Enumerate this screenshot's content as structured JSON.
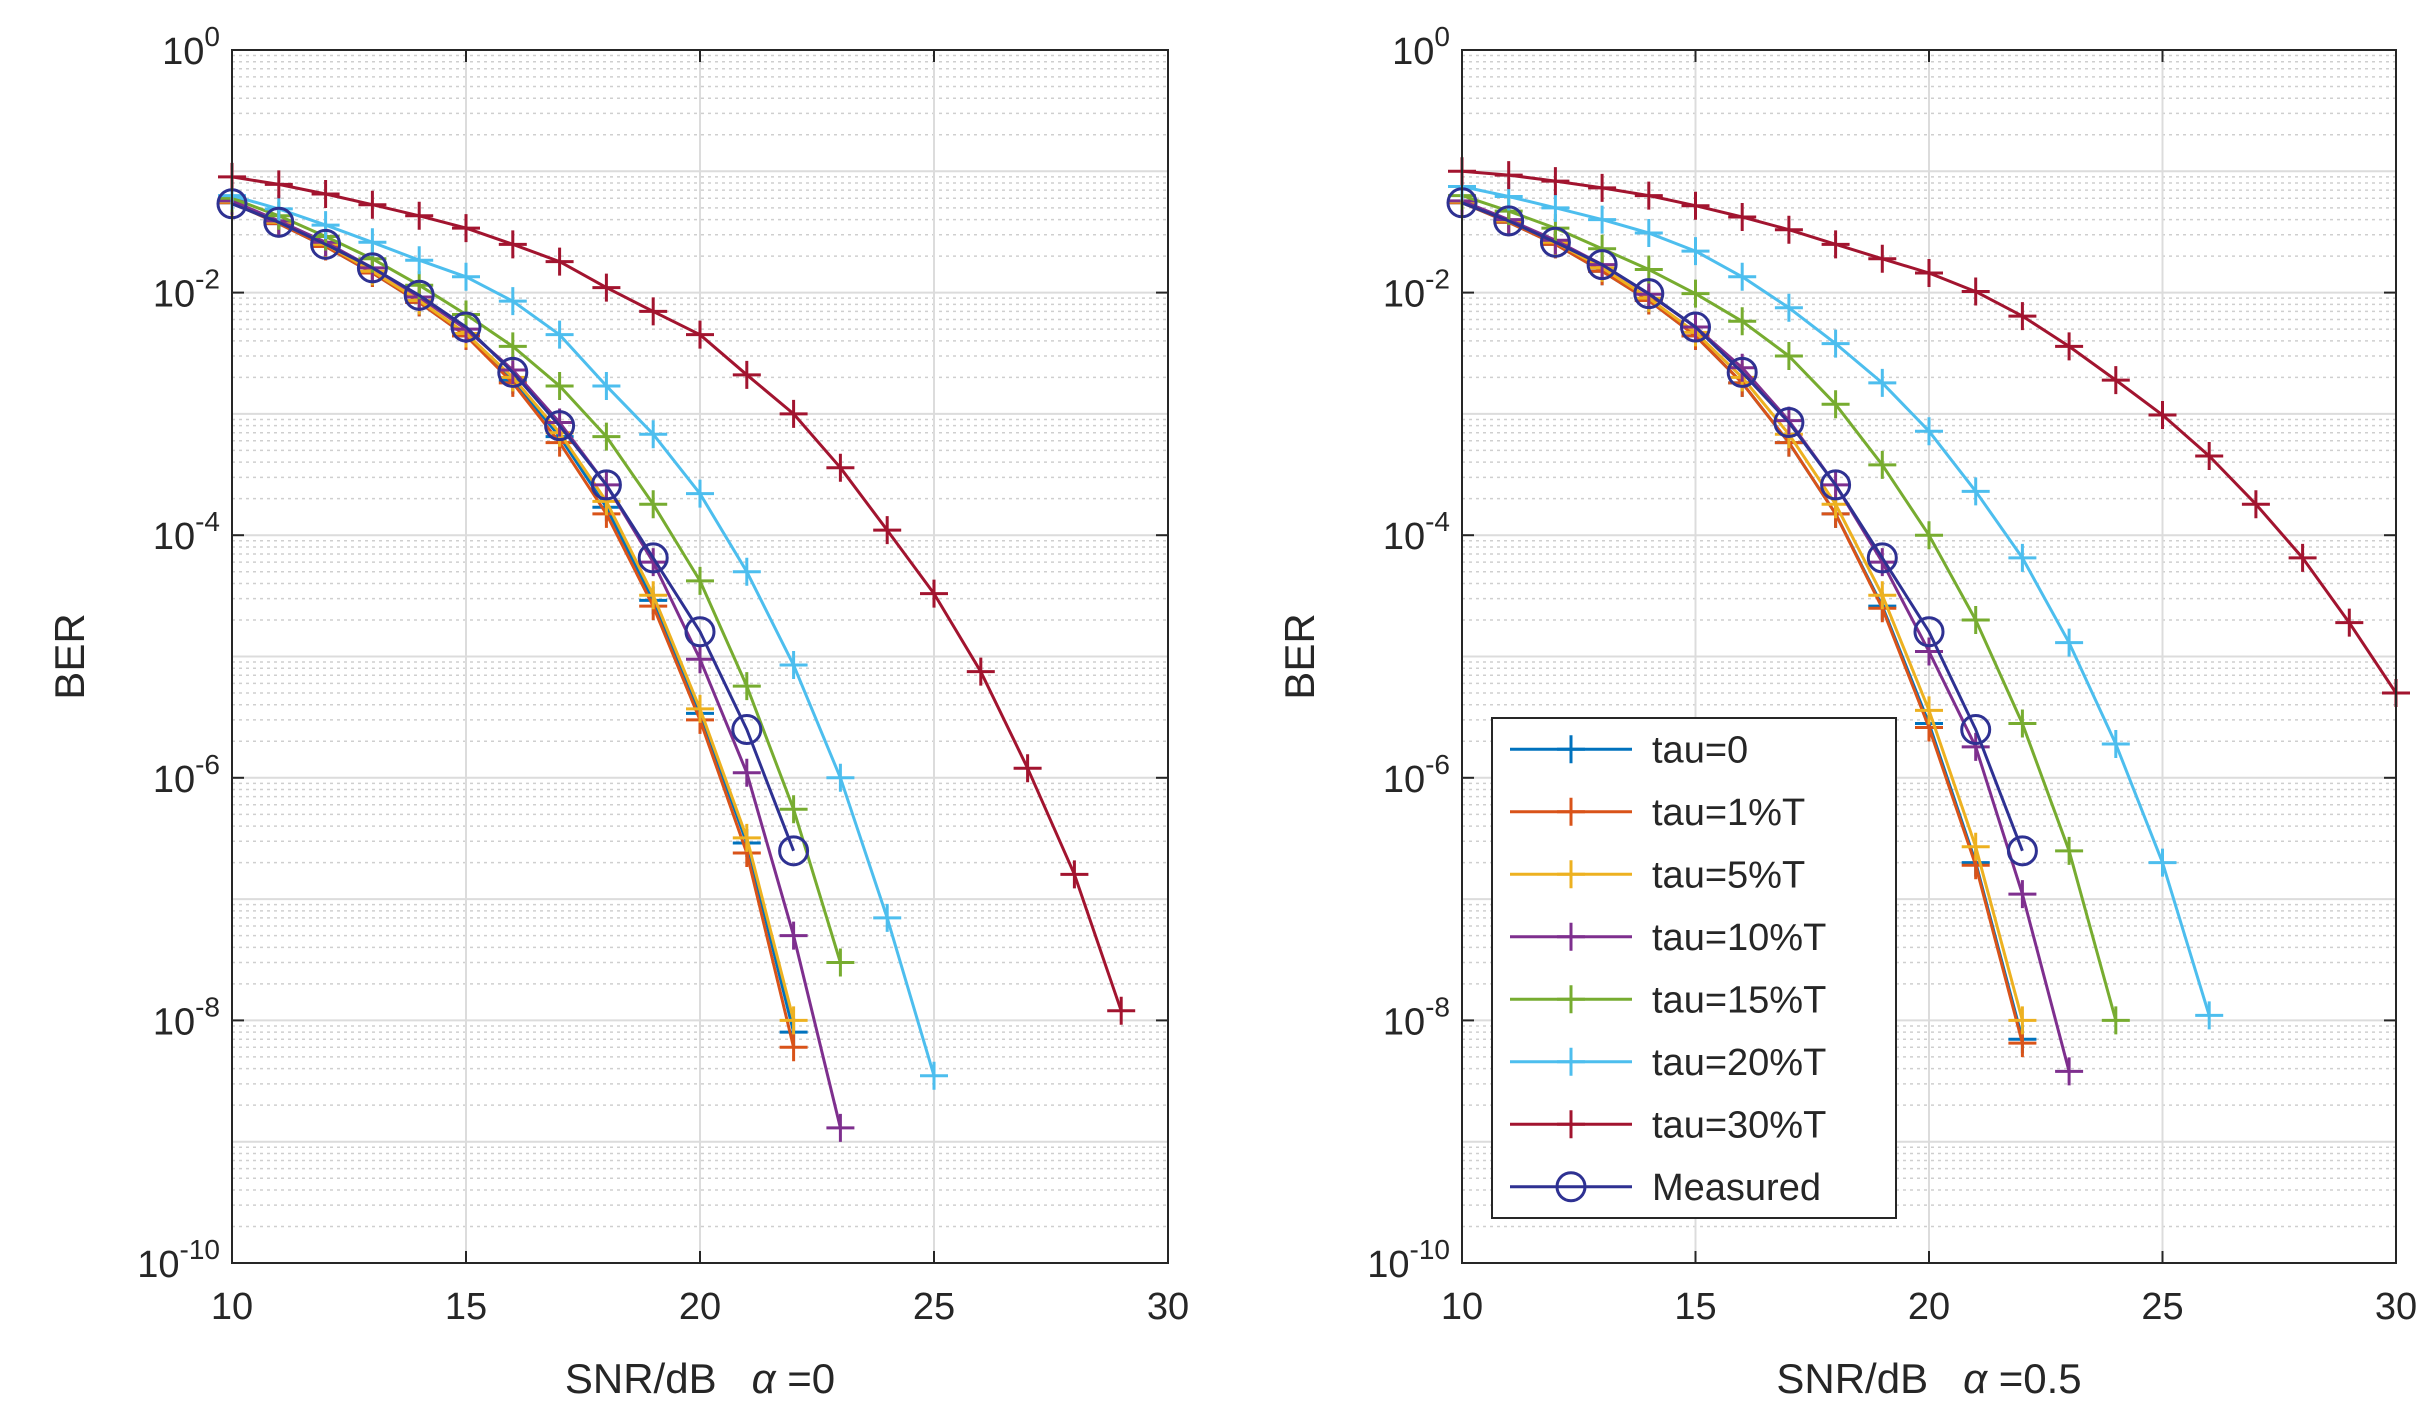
{
  "chart_data": [
    {
      "type": "line",
      "xlabel": "SNR/dB",
      "xlabel_param": "α =0",
      "ylabel": "BER",
      "xlim": [
        10,
        30
      ],
      "ylim_exp": [
        -10,
        0
      ],
      "yscale": "log",
      "grid": true,
      "minor_grid": true,
      "xticks": [
        "10",
        "15",
        "20",
        "25",
        "30"
      ],
      "yticks": [
        {
          "base": "10",
          "exp": "0"
        },
        {
          "base": "10",
          "exp": "-2"
        },
        {
          "base": "10",
          "exp": "-4"
        },
        {
          "base": "10",
          "exp": "-6"
        },
        {
          "base": "10",
          "exp": "-8"
        },
        {
          "base": "10",
          "exp": "-10"
        }
      ],
      "series": [
        {
          "name": "tau=0",
          "color": "#0072BD",
          "marker": "plus",
          "x": [
            10,
            11,
            12,
            13,
            14,
            15,
            16,
            17,
            18,
            19,
            20,
            21,
            22
          ],
          "y": [
            0.055,
            0.037,
            0.024,
            0.0145,
            0.0083,
            0.0044,
            0.0019,
            0.00065,
            0.00017,
            2.9e-05,
            3.4e-06,
            2.9e-07,
            8e-09
          ]
        },
        {
          "name": "tau=1%T",
          "color": "#D95319",
          "marker": "plus",
          "x": [
            10,
            11,
            12,
            13,
            14,
            15,
            16,
            17,
            18,
            19,
            20,
            21,
            22
          ],
          "y": [
            0.055,
            0.037,
            0.024,
            0.0145,
            0.0083,
            0.0044,
            0.0018,
            0.00058,
            0.00015,
            2.6e-05,
            3e-06,
            2.4e-07,
            6e-09
          ]
        },
        {
          "name": "tau=5%T",
          "color": "#EDB120",
          "marker": "plus",
          "x": [
            10,
            11,
            12,
            13,
            14,
            15,
            16,
            17,
            18,
            19,
            20,
            21,
            22
          ],
          "y": [
            0.056,
            0.038,
            0.025,
            0.015,
            0.0086,
            0.0046,
            0.002,
            0.0007,
            0.00019,
            3.2e-05,
            3.7e-06,
            3.2e-07,
            1e-08
          ]
        },
        {
          "name": "tau=10%T",
          "color": "#7E2F8E",
          "marker": "plus",
          "x": [
            10,
            11,
            12,
            13,
            14,
            15,
            16,
            17,
            18,
            19,
            20,
            21,
            22,
            23
          ],
          "y": [
            0.057,
            0.039,
            0.026,
            0.016,
            0.0092,
            0.005,
            0.0023,
            0.00085,
            0.00026,
            6e-05,
            9.5e-06,
            1.1e-06,
            5e-08,
            1.3e-09
          ]
        },
        {
          "name": "tau=15%T",
          "color": "#77AC30",
          "marker": "plus",
          "x": [
            10,
            11,
            12,
            13,
            14,
            15,
            16,
            17,
            18,
            19,
            20,
            21,
            22,
            23
          ],
          "y": [
            0.06,
            0.043,
            0.029,
            0.019,
            0.0115,
            0.0066,
            0.0036,
            0.0017,
            0.00065,
            0.00018,
            4.2e-05,
            5.7e-06,
            5.5e-07,
            3e-08
          ]
        },
        {
          "name": "tau=20%T",
          "color": "#4DBEEE",
          "marker": "plus",
          "x": [
            10,
            11,
            12,
            13,
            14,
            15,
            16,
            17,
            18,
            19,
            20,
            21,
            22,
            23,
            24,
            25
          ],
          "y": [
            0.063,
            0.049,
            0.036,
            0.026,
            0.0185,
            0.0135,
            0.0085,
            0.0045,
            0.0017,
            0.00068,
            0.00022,
            5e-05,
            8.5e-06,
            1e-06,
            7e-08,
            3.5e-09
          ]
        },
        {
          "name": "tau=30%T",
          "color": "#A2142F",
          "marker": "plus",
          "x": [
            10,
            11,
            12,
            13,
            14,
            15,
            16,
            17,
            18,
            19,
            20,
            21,
            22,
            23,
            24,
            25,
            26,
            27,
            28,
            29
          ],
          "y": [
            0.09,
            0.078,
            0.065,
            0.053,
            0.043,
            0.034,
            0.025,
            0.018,
            0.011,
            0.007,
            0.0045,
            0.0021,
            0.001,
            0.00036,
            0.00011,
            3.3e-05,
            7.5e-06,
            1.2e-06,
            1.6e-07,
            1.2e-08
          ]
        },
        {
          "name": "Measured",
          "color": "#2E3192",
          "marker": "circle",
          "x": [
            10,
            11,
            12,
            13,
            14,
            15,
            16,
            17,
            18,
            19,
            20,
            21,
            22
          ],
          "y": [
            0.054,
            0.038,
            0.025,
            0.016,
            0.0095,
            0.0052,
            0.0022,
            0.0008,
            0.00026,
            6.5e-05,
            1.6e-05,
            2.5e-06,
            2.5e-07
          ]
        }
      ]
    },
    {
      "type": "line",
      "xlabel": "SNR/dB",
      "xlabel_param": "α =0.5",
      "ylabel": "BER",
      "xlim": [
        10,
        30
      ],
      "ylim_exp": [
        -10,
        0
      ],
      "yscale": "log",
      "grid": true,
      "minor_grid": true,
      "legend": "lower-left",
      "xticks": [
        "10",
        "15",
        "20",
        "25",
        "30"
      ],
      "yticks": [
        {
          "base": "10",
          "exp": "0"
        },
        {
          "base": "10",
          "exp": "-2"
        },
        {
          "base": "10",
          "exp": "-4"
        },
        {
          "base": "10",
          "exp": "-6"
        },
        {
          "base": "10",
          "exp": "-8"
        },
        {
          "base": "10",
          "exp": "-10"
        }
      ],
      "series": [
        {
          "name": "tau=0",
          "color": "#0072BD",
          "marker": "plus",
          "x": [
            10,
            11,
            12,
            13,
            14,
            15,
            16,
            17,
            18,
            19,
            20,
            21,
            22
          ],
          "y": [
            0.055,
            0.038,
            0.025,
            0.015,
            0.0086,
            0.0044,
            0.0018,
            0.00058,
            0.00015,
            2.6e-05,
            2.8e-06,
            2e-07,
            7e-09
          ]
        },
        {
          "name": "tau=1%T",
          "color": "#D95319",
          "marker": "plus",
          "x": [
            10,
            11,
            12,
            13,
            14,
            15,
            16,
            17,
            18,
            19,
            20,
            21,
            22
          ],
          "y": [
            0.055,
            0.038,
            0.025,
            0.015,
            0.0086,
            0.0044,
            0.0018,
            0.00058,
            0.00015,
            2.5e-05,
            2.6e-06,
            1.9e-07,
            6.5e-09
          ]
        },
        {
          "name": "tau=5%T",
          "color": "#EDB120",
          "marker": "plus",
          "x": [
            10,
            11,
            12,
            13,
            14,
            15,
            16,
            17,
            18,
            19,
            20,
            21,
            22
          ],
          "y": [
            0.056,
            0.039,
            0.026,
            0.016,
            0.009,
            0.0047,
            0.002,
            0.00068,
            0.00018,
            3.2e-05,
            3.6e-06,
            2.7e-07,
            1e-08
          ]
        },
        {
          "name": "tau=10%T",
          "color": "#7E2F8E",
          "marker": "plus",
          "x": [
            10,
            11,
            12,
            13,
            14,
            15,
            16,
            17,
            18,
            19,
            20,
            21,
            22,
            23
          ],
          "y": [
            0.057,
            0.04,
            0.027,
            0.017,
            0.0097,
            0.0052,
            0.0024,
            0.00088,
            0.00026,
            6e-05,
            1.1e-05,
            1.8e-06,
            1.1e-07,
            3.8e-09
          ]
        },
        {
          "name": "tau=15%T",
          "color": "#77AC30",
          "marker": "plus",
          "x": [
            10,
            11,
            12,
            13,
            14,
            15,
            16,
            17,
            18,
            19,
            20,
            21,
            22,
            23,
            24
          ],
          "y": [
            0.063,
            0.047,
            0.034,
            0.023,
            0.0155,
            0.0098,
            0.0058,
            0.003,
            0.0012,
            0.00038,
            0.0001,
            2e-05,
            2.8e-06,
            2.5e-07,
            1e-08
          ]
        },
        {
          "name": "tau=20%T",
          "color": "#4DBEEE",
          "marker": "plus",
          "x": [
            10,
            11,
            12,
            13,
            14,
            15,
            16,
            17,
            18,
            19,
            20,
            21,
            22,
            23,
            24,
            25,
            26
          ],
          "y": [
            0.075,
            0.062,
            0.05,
            0.04,
            0.031,
            0.022,
            0.0135,
            0.0075,
            0.0038,
            0.0018,
            0.00072,
            0.00023,
            6.5e-05,
            1.3e-05,
            1.9e-06,
            2e-07,
            1.1e-08
          ]
        },
        {
          "name": "tau=30%T",
          "color": "#A2142F",
          "marker": "plus",
          "x": [
            10,
            11,
            12,
            13,
            14,
            15,
            16,
            17,
            18,
            19,
            20,
            21,
            22,
            23,
            24,
            25,
            26,
            27,
            28,
            29,
            30
          ],
          "y": [
            0.1,
            0.093,
            0.083,
            0.073,
            0.063,
            0.052,
            0.042,
            0.033,
            0.025,
            0.019,
            0.0145,
            0.0102,
            0.0064,
            0.0036,
            0.0019,
            0.00098,
            0.00045,
            0.00018,
            6.5e-05,
            1.9e-05,
            5e-06
          ]
        },
        {
          "name": "Measured",
          "color": "#2E3192",
          "marker": "circle",
          "x": [
            10,
            11,
            12,
            13,
            14,
            15,
            16,
            17,
            18,
            19,
            20,
            21,
            22
          ],
          "y": [
            0.055,
            0.039,
            0.026,
            0.017,
            0.0098,
            0.0052,
            0.0022,
            0.00085,
            0.00026,
            6.5e-05,
            1.6e-05,
            2.5e-06,
            2.5e-07
          ]
        }
      ]
    }
  ]
}
